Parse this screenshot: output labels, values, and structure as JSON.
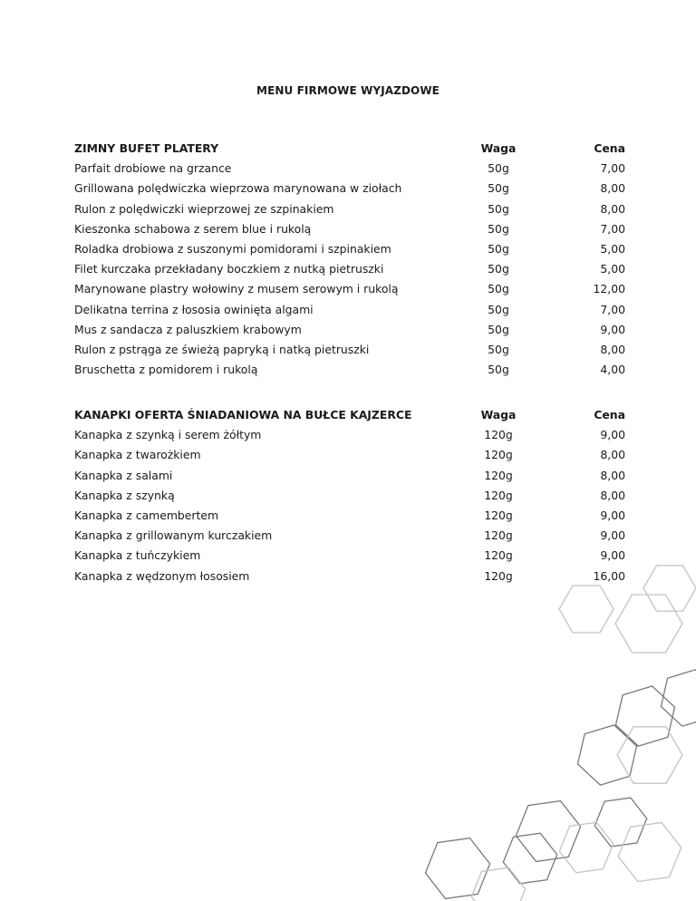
{
  "title": "MENU FIRMOWE WYJAZDOWE",
  "sections": [
    {
      "heading": "ZIMNY BUFET PLATERY",
      "col_weight": "Waga",
      "col_price": "Cena",
      "items": [
        {
          "name": "Parfait drobiowe na grzance",
          "weight": "50g",
          "price": "7,00"
        },
        {
          "name": "Grillowana polędwiczka wieprzowa marynowana w ziołach",
          "weight": "50g",
          "price": "8,00"
        },
        {
          "name": "Rulon z polędwiczki wieprzowej ze szpinakiem",
          "weight": "50g",
          "price": "8,00"
        },
        {
          "name": "Kieszonka schabowa z serem blue i rukolą",
          "weight": "50g",
          "price": "7,00"
        },
        {
          "name": "Roladka drobiowa z suszonymi pomidorami i szpinakiem",
          "weight": "50g",
          "price": "5,00"
        },
        {
          "name": "Filet kurczaka przekładany boczkiem z nutką pietruszki",
          "weight": "50g",
          "price": "5,00"
        },
        {
          "name": "Marynowane plastry wołowiny z musem serowym i rukolą",
          "weight": "50g",
          "price": "12,00"
        },
        {
          "name": "Delikatna terrina z łososia owinięta algami",
          "weight": "50g",
          "price": "7,00"
        },
        {
          "name": "Mus z sandacza z paluszkiem krabowym",
          "weight": "50g",
          "price": "9,00"
        },
        {
          "name": "Rulon z pstrąga ze świeżą papryką i natką pietruszki",
          "weight": "50g",
          "price": "8,00"
        },
        {
          "name": "Bruschetta z pomidorem i rukolą",
          "weight": "50g",
          "price": "4,00"
        }
      ]
    },
    {
      "heading": "KANAPKI OFERTA ŚNIADANIOWA NA BUŁCE KAJZERCE",
      "col_weight": "Waga",
      "col_price": "Cena",
      "items": [
        {
          "name": "Kanapka z szynką i serem żółtym",
          "weight": "120g",
          "price": "9,00"
        },
        {
          "name": "Kanapka z twarożkiem",
          "weight": "120g",
          "price": "8,00"
        },
        {
          "name": "Kanapka z salami",
          "weight": "120g",
          "price": "8,00"
        },
        {
          "name": "Kanapka z szynką",
          "weight": "120g",
          "price": "8,00"
        },
        {
          "name": "Kanapka z camembertem",
          "weight": "120g",
          "price": "9,00"
        },
        {
          "name": "Kanapka z grillowanym kurczakiem",
          "weight": "120g",
          "price": "9,00"
        },
        {
          "name": "Kanapka z tuńczykiem",
          "weight": "120g",
          "price": "9,00"
        },
        {
          "name": "Kanapka z wędzonym łososiem",
          "weight": "120g",
          "price": "16,00"
        }
      ]
    }
  ],
  "colors": {
    "text": "#1a1a1a",
    "hex_dark": "#7a7a7a",
    "hex_light": "#c4c4c4"
  }
}
